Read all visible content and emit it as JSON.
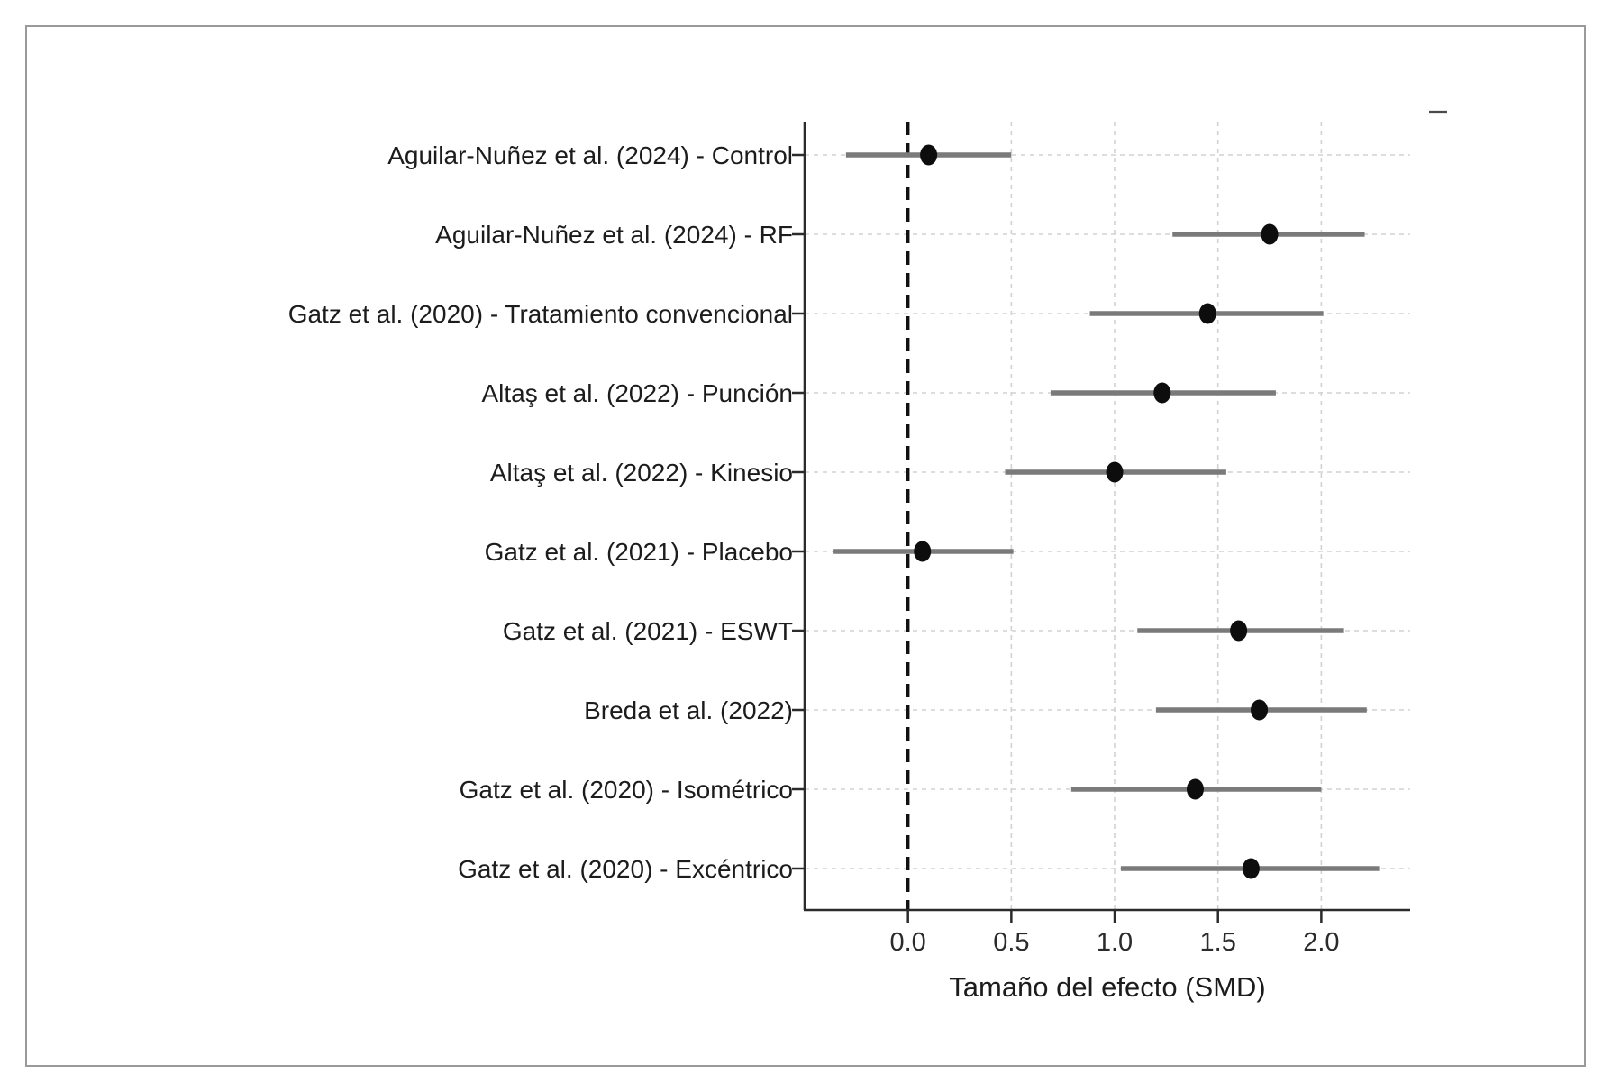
{
  "chart_data": {
    "type": "scatter",
    "subtype": "forest-plot",
    "title": "",
    "xlabel": "Tamaño del efecto (SMD)",
    "ylabel": "",
    "xlim": [
      -0.5,
      2.43
    ],
    "xticks": [
      0.0,
      0.5,
      1.0,
      1.5,
      2.0
    ],
    "xtick_labels": [
      "0.0",
      "0.5",
      "1.0",
      "1.5",
      "2.0"
    ],
    "zero_line_x": 0.0,
    "grid": "dashed, both axes",
    "legend": "none",
    "studies": [
      {
        "label": "Aguilar-Nuñez et al. (2024) - Control",
        "smd": 0.1,
        "ci_low": -0.3,
        "ci_high": 0.5
      },
      {
        "label": "Aguilar-Nuñez et al. (2024) - RF",
        "smd": 1.75,
        "ci_low": 1.28,
        "ci_high": 2.21
      },
      {
        "label": "Gatz et al. (2020) - Tratamiento convencional",
        "smd": 1.45,
        "ci_low": 0.88,
        "ci_high": 2.01
      },
      {
        "label": "Altaş et al. (2022) - Punción",
        "smd": 1.23,
        "ci_low": 0.69,
        "ci_high": 1.78
      },
      {
        "label": "Altaş et al. (2022) - Kinesio",
        "smd": 1.0,
        "ci_low": 0.47,
        "ci_high": 1.54
      },
      {
        "label": "Gatz et al. (2021) - Placebo",
        "smd": 0.07,
        "ci_low": -0.36,
        "ci_high": 0.51
      },
      {
        "label": "Gatz et al. (2021) - ESWT",
        "smd": 1.6,
        "ci_low": 1.11,
        "ci_high": 2.11
      },
      {
        "label": "Breda et al. (2022)",
        "smd": 1.7,
        "ci_low": 1.2,
        "ci_high": 2.22
      },
      {
        "label": "Gatz et al. (2020) - Isométrico",
        "smd": 1.39,
        "ci_low": 0.79,
        "ci_high": 2.0
      },
      {
        "label": "Gatz et al. (2020) - Excéntrico",
        "smd": 1.66,
        "ci_low": 1.03,
        "ci_high": 2.28
      }
    ]
  },
  "style": {
    "frame_border_color": "#9a9a9a",
    "spine_color": "#2b2b2b",
    "grid_color": "#d2d2d2",
    "zero_line_color": "#111111",
    "ci_line_color": "#7a7a7a",
    "marker_color": "#0d0d0d",
    "label_color": "#1c1c1c",
    "tick_label_color": "#2b2b2b"
  }
}
